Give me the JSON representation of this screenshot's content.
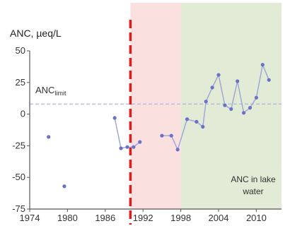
{
  "chart_data": {
    "type": "line",
    "ylabel": "ANC, µeq/L",
    "ylim": [
      -75,
      50
    ],
    "yticks": [
      50,
      25,
      0,
      -25,
      -50,
      -75
    ],
    "xlim": [
      1974,
      2014
    ],
    "xticks": [
      1974,
      1980,
      1986,
      1992,
      1998,
      2004,
      2010
    ],
    "limit_line": {
      "label_main": "ANC",
      "label_sub": "limit",
      "value": 8
    },
    "vertical_marker": {
      "x": 1990
    },
    "regions": [
      {
        "from": 1990,
        "to": 1998,
        "color": "#fbe0e0"
      },
      {
        "from": 1998,
        "to": 2014,
        "color": "#e2ebd6"
      }
    ],
    "annotation": {
      "line1": "ANC in lake",
      "line2": "water"
    },
    "colors": {
      "line": "#9fa8d6",
      "marker": "#6b70c8",
      "limit": "#b0b4e0",
      "marker_line": "#e11b1b",
      "axis": "#555555"
    },
    "series": [
      {
        "points": [
          [
            1977,
            -18
          ],
          [
            1979.5,
            -57
          ],
          [
            1987.5,
            -3
          ],
          [
            1988.5,
            -27
          ],
          [
            1989.5,
            -26
          ],
          [
            1990.5,
            -26
          ],
          [
            1991.5,
            -22
          ],
          [
            1995,
            -17
          ],
          [
            1996.5,
            -17
          ],
          [
            1997.5,
            -28
          ],
          [
            1999,
            -4
          ],
          [
            2000.5,
            -6
          ],
          [
            2001.5,
            -10
          ],
          [
            2002,
            10
          ],
          [
            2003,
            21
          ],
          [
            2004,
            31
          ],
          [
            2005,
            7
          ],
          [
            2006,
            4
          ],
          [
            2007,
            26
          ],
          [
            2008,
            1
          ],
          [
            2009,
            5
          ],
          [
            2010,
            13
          ],
          [
            2011,
            39
          ],
          [
            2012,
            27
          ]
        ],
        "segments": [
          [
            2,
            6
          ],
          [
            7,
            23
          ]
        ]
      }
    ]
  }
}
